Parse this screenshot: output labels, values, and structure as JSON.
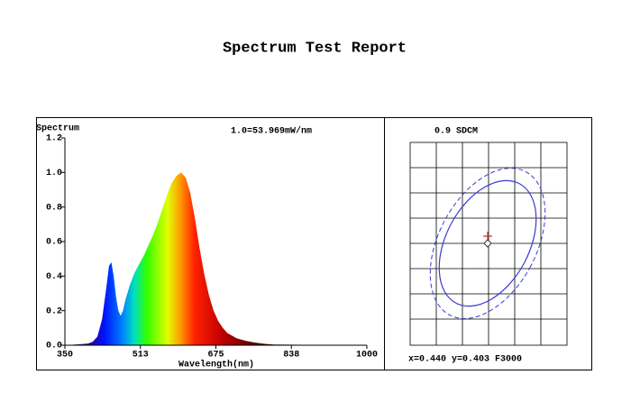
{
  "chart_data": {
    "type": "area",
    "title": "Spectrum Test Report",
    "y_label": "Spectrum",
    "x_label": "Wavelength(nm)",
    "annotation": "1.0=53.969mW/nm",
    "x": [
      350,
      380,
      400,
      410,
      420,
      430,
      440,
      445,
      450,
      455,
      460,
      465,
      470,
      475,
      480,
      490,
      500,
      510,
      520,
      530,
      540,
      550,
      560,
      570,
      580,
      590,
      600,
      610,
      620,
      630,
      640,
      650,
      660,
      670,
      680,
      690,
      700,
      720,
      740,
      760,
      780,
      800,
      1000
    ],
    "values": [
      0,
      0.005,
      0.01,
      0.02,
      0.05,
      0.15,
      0.35,
      0.46,
      0.48,
      0.4,
      0.28,
      0.2,
      0.17,
      0.2,
      0.26,
      0.35,
      0.42,
      0.47,
      0.52,
      0.58,
      0.64,
      0.71,
      0.79,
      0.87,
      0.94,
      0.98,
      1.0,
      0.97,
      0.88,
      0.73,
      0.56,
      0.41,
      0.29,
      0.2,
      0.14,
      0.1,
      0.07,
      0.04,
      0.025,
      0.015,
      0.008,
      0.004,
      0
    ],
    "xlim": [
      350,
      1000
    ],
    "ylim": [
      0,
      1.2
    ],
    "xticks": [
      350,
      {
        "value": 512.5,
        "label": "513"
      },
      675,
      {
        "value": 837.5,
        "label": "838"
      },
      1000
    ],
    "yticks": [
      {
        "value": 0,
        "label": "0.0"
      },
      0.2,
      0.4,
      0.6,
      0.8,
      {
        "value": 1,
        "label": "1.0"
      },
      1.2
    ]
  },
  "sdcm_panel": {
    "title": "0.9 SDCM",
    "footer": "x=0.440 y=0.403 F3000"
  }
}
